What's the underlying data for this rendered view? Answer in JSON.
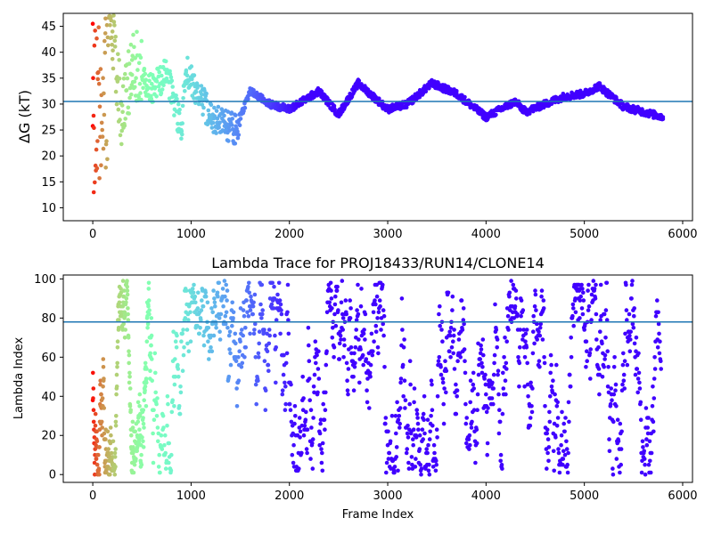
{
  "chart_data": [
    {
      "type": "scatter",
      "title": "",
      "xlabel": "",
      "ylabel": "ΔG (kT)",
      "xlim": [
        -300,
        6100
      ],
      "ylim": [
        7.5,
        47.5
      ],
      "xticks": [
        0,
        1000,
        2000,
        3000,
        4000,
        5000,
        6000
      ],
      "yticks": [
        10,
        15,
        20,
        25,
        30,
        35,
        40,
        45
      ],
      "hline": 30.5,
      "hline_color": "#1f77b4",
      "colormap": "rainbow (red at frame 0 → violet at late frames)",
      "grid": false,
      "key_points": [
        {
          "x": 0,
          "y": 45.5
        },
        {
          "x": 10,
          "y": 13
        },
        {
          "x": 50,
          "y": 36
        },
        {
          "x": 130,
          "y": 46.5
        },
        {
          "x": 200,
          "y": 44
        },
        {
          "x": 300,
          "y": 26
        },
        {
          "x": 400,
          "y": 38.5
        },
        {
          "x": 600,
          "y": 33
        },
        {
          "x": 750,
          "y": 36
        },
        {
          "x": 900,
          "y": 25
        },
        {
          "x": 950,
          "y": 36.5
        },
        {
          "x": 1200,
          "y": 27.5
        },
        {
          "x": 1450,
          "y": 25
        },
        {
          "x": 1600,
          "y": 32.5
        },
        {
          "x": 1800,
          "y": 30
        },
        {
          "x": 2000,
          "y": 29
        },
        {
          "x": 2300,
          "y": 32.5
        },
        {
          "x": 2500,
          "y": 28
        },
        {
          "x": 2700,
          "y": 34
        },
        {
          "x": 3000,
          "y": 29
        },
        {
          "x": 3200,
          "y": 30
        },
        {
          "x": 3450,
          "y": 34
        },
        {
          "x": 3700,
          "y": 32
        },
        {
          "x": 4000,
          "y": 27.5
        },
        {
          "x": 4300,
          "y": 30.5
        },
        {
          "x": 4400,
          "y": 28.5
        },
        {
          "x": 4800,
          "y": 31.5
        },
        {
          "x": 5000,
          "y": 32
        },
        {
          "x": 5150,
          "y": 33.5
        },
        {
          "x": 5400,
          "y": 29.5
        },
        {
          "x": 5600,
          "y": 28.5
        },
        {
          "x": 5800,
          "y": 27.5
        }
      ]
    },
    {
      "type": "scatter",
      "title": "Lambda Trace for PROJ18433/RUN14/CLONE14",
      "xlabel": "Frame Index",
      "ylabel": "Lambda Index",
      "xlim": [
        -300,
        6100
      ],
      "ylim": [
        -4,
        102
      ],
      "xticks": [
        0,
        1000,
        2000,
        3000,
        4000,
        5000,
        6000
      ],
      "yticks": [
        0,
        20,
        40,
        60,
        80,
        100
      ],
      "hline": 78,
      "hline_color": "#1f77b4",
      "colormap": "rainbow (red at frame 0 → violet at late frames)",
      "grid": false,
      "point_count_approx": 5800,
      "value_range": [
        0,
        99
      ]
    }
  ]
}
